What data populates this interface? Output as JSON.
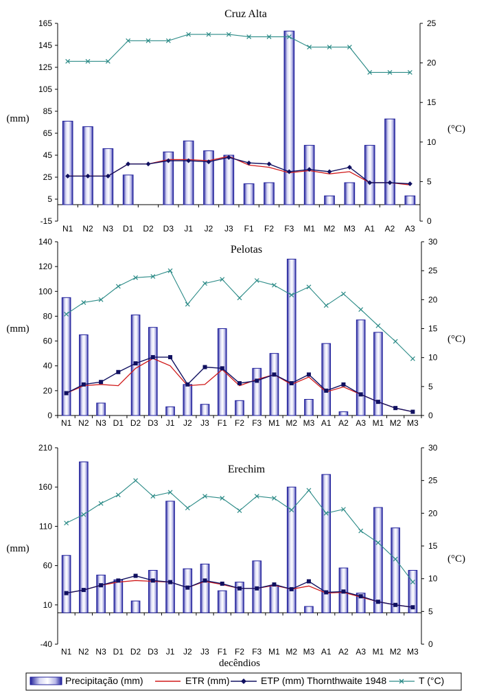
{
  "legend": {
    "precip_label": "Precipitação (mm)",
    "etr_label": "ETR (mm)",
    "etp_label": "ETP (mm) Thornthwaite 1948",
    "temp_label": "T (°C)"
  },
  "colors": {
    "bar_dark": "#1f1f9a",
    "bar_light": "#e8e8f8",
    "etr": "#d01818",
    "etp": "#101060",
    "temp": "#2a8a86",
    "axis": "#000000"
  },
  "chart_data": [
    {
      "type": "bar",
      "title": "Cruz Alta",
      "xlabel": "",
      "ylabel": "(mm)",
      "y2label": "(°C)",
      "ylim": [
        -15,
        165
      ],
      "yticks": [
        -15,
        5,
        25,
        45,
        65,
        85,
        105,
        125,
        145,
        165
      ],
      "y2lim": [
        0,
        25
      ],
      "y2ticks": [
        0,
        5,
        10,
        15,
        20,
        25
      ],
      "categories": [
        "N1",
        "N2",
        "N3",
        "D1",
        "D2",
        "D3",
        "J1",
        "J2",
        "J3",
        "F1",
        "F2",
        "F3",
        "M1",
        "M2",
        "M3",
        "A1",
        "A2",
        "A3"
      ],
      "series": [
        {
          "name": "Precipitação (mm)",
          "kind": "bar",
          "axis": "left",
          "values": [
            76,
            71,
            51,
            27,
            0,
            48,
            58,
            49,
            45,
            19,
            20,
            158,
            54,
            8,
            20,
            54,
            78,
            8
          ]
        },
        {
          "name": "ETR (mm)",
          "kind": "line",
          "axis": "left",
          "values": [
            26,
            26,
            26,
            37,
            37,
            41,
            41,
            40,
            44,
            36,
            34,
            29,
            31,
            28,
            30,
            20,
            20,
            18
          ]
        },
        {
          "name": "ETP (mm) Thornthwaite 1948",
          "kind": "line",
          "axis": "left",
          "values": [
            26,
            26,
            26,
            37,
            37,
            40,
            40,
            39,
            43,
            38,
            37,
            30,
            32,
            30,
            34,
            20,
            20,
            19
          ]
        },
        {
          "name": "T (°C)",
          "kind": "line",
          "axis": "right",
          "values": [
            20.2,
            20.2,
            20.2,
            22.8,
            22.8,
            22.8,
            23.6,
            23.6,
            23.6,
            23.3,
            23.3,
            23.3,
            22,
            22,
            22,
            18.8,
            18.8,
            18.8
          ]
        }
      ]
    },
    {
      "type": "bar",
      "title": "Pelotas",
      "xlabel": "",
      "ylabel": "(mm)",
      "y2label": "(°C)",
      "ylim": [
        0,
        140
      ],
      "yticks": [
        0,
        20,
        40,
        60,
        80,
        100,
        120,
        140
      ],
      "y2lim": [
        0,
        30
      ],
      "y2ticks": [
        0,
        5,
        10,
        15,
        20,
        25,
        30
      ],
      "categories": [
        "N1",
        "N2",
        "N3",
        "D1",
        "D2",
        "D3",
        "J1",
        "J2",
        "J3",
        "F1",
        "F2",
        "F3",
        "M1",
        "M2",
        "M3",
        "A1",
        "A2",
        "A3",
        "M1",
        "M2",
        "M3"
      ],
      "series": [
        {
          "name": "Precipitação (mm)",
          "kind": "bar",
          "axis": "left",
          "values": [
            95,
            65,
            10,
            0,
            81,
            71,
            7,
            25,
            9,
            70,
            12,
            38,
            50,
            126,
            13,
            58,
            3,
            77,
            67,
            0,
            0
          ]
        },
        {
          "name": "ETR (mm)",
          "kind": "line",
          "axis": "left",
          "values": [
            18,
            24,
            25,
            24,
            38,
            46,
            40,
            24,
            25,
            37,
            24,
            29,
            33,
            25,
            31,
            19,
            23,
            17,
            11,
            6,
            3
          ]
        },
        {
          "name": "ETP (mm) Thornthwaite 1948",
          "kind": "line",
          "axis": "left",
          "values": [
            18,
            25,
            27,
            35,
            42,
            47,
            47,
            25,
            39,
            38,
            26,
            28,
            33,
            26,
            33,
            20,
            25,
            17,
            11,
            6,
            3
          ]
        },
        {
          "name": "T (°C)",
          "kind": "line",
          "axis": "right",
          "values": [
            17.5,
            19.5,
            20,
            22.3,
            23.8,
            24,
            25,
            19.2,
            22.8,
            23.5,
            20.3,
            23.3,
            22.5,
            20.8,
            22.2,
            19,
            21,
            18.3,
            15.5,
            12.8,
            9.8
          ]
        }
      ]
    },
    {
      "type": "bar",
      "title": "Erechim",
      "xlabel": "decêndios",
      "ylabel": "(mm)",
      "y2label": "(°C)",
      "ylim": [
        -40,
        210
      ],
      "yticks": [
        -40,
        10,
        60,
        110,
        160,
        210
      ],
      "y2lim": [
        0,
        30
      ],
      "y2ticks": [
        0,
        5,
        10,
        15,
        20,
        25,
        30
      ],
      "categories": [
        "N1",
        "N2",
        "N3",
        "D1",
        "D2",
        "D3",
        "J1",
        "J2",
        "J3",
        "F1",
        "F2",
        "F3",
        "M1",
        "M2",
        "M3",
        "A1",
        "A2",
        "A3",
        "M1",
        "M2",
        "M3"
      ],
      "series": [
        {
          "name": "Precipitação (mm)",
          "kind": "bar",
          "axis": "left",
          "values": [
            73,
            192,
            48,
            42,
            15,
            54,
            142,
            56,
            62,
            28,
            39,
            66,
            35,
            160,
            8,
            176,
            57,
            25,
            134,
            108,
            54
          ]
        },
        {
          "name": "ETR (mm)",
          "kind": "line",
          "axis": "left",
          "values": [
            25,
            29,
            35,
            39,
            41,
            40,
            39,
            32,
            40,
            36,
            31,
            31,
            35,
            30,
            34,
            25,
            26,
            20,
            14,
            10,
            7
          ]
        },
        {
          "name": "ETP (mm) Thornthwaite 1948",
          "kind": "line",
          "axis": "left",
          "values": [
            25,
            29,
            35,
            41,
            47,
            41,
            39,
            32,
            41,
            37,
            31,
            31,
            36,
            30,
            40,
            26,
            27,
            21,
            14,
            10,
            7
          ]
        },
        {
          "name": "T (°C)",
          "kind": "line",
          "axis": "right",
          "values": [
            18.5,
            19.8,
            21.5,
            22.8,
            25,
            22.6,
            23.2,
            20.8,
            22.6,
            22.3,
            20.4,
            22.6,
            22.3,
            20.5,
            23.5,
            20,
            20.6,
            17.3,
            15.5,
            13,
            9.5
          ]
        }
      ]
    }
  ]
}
